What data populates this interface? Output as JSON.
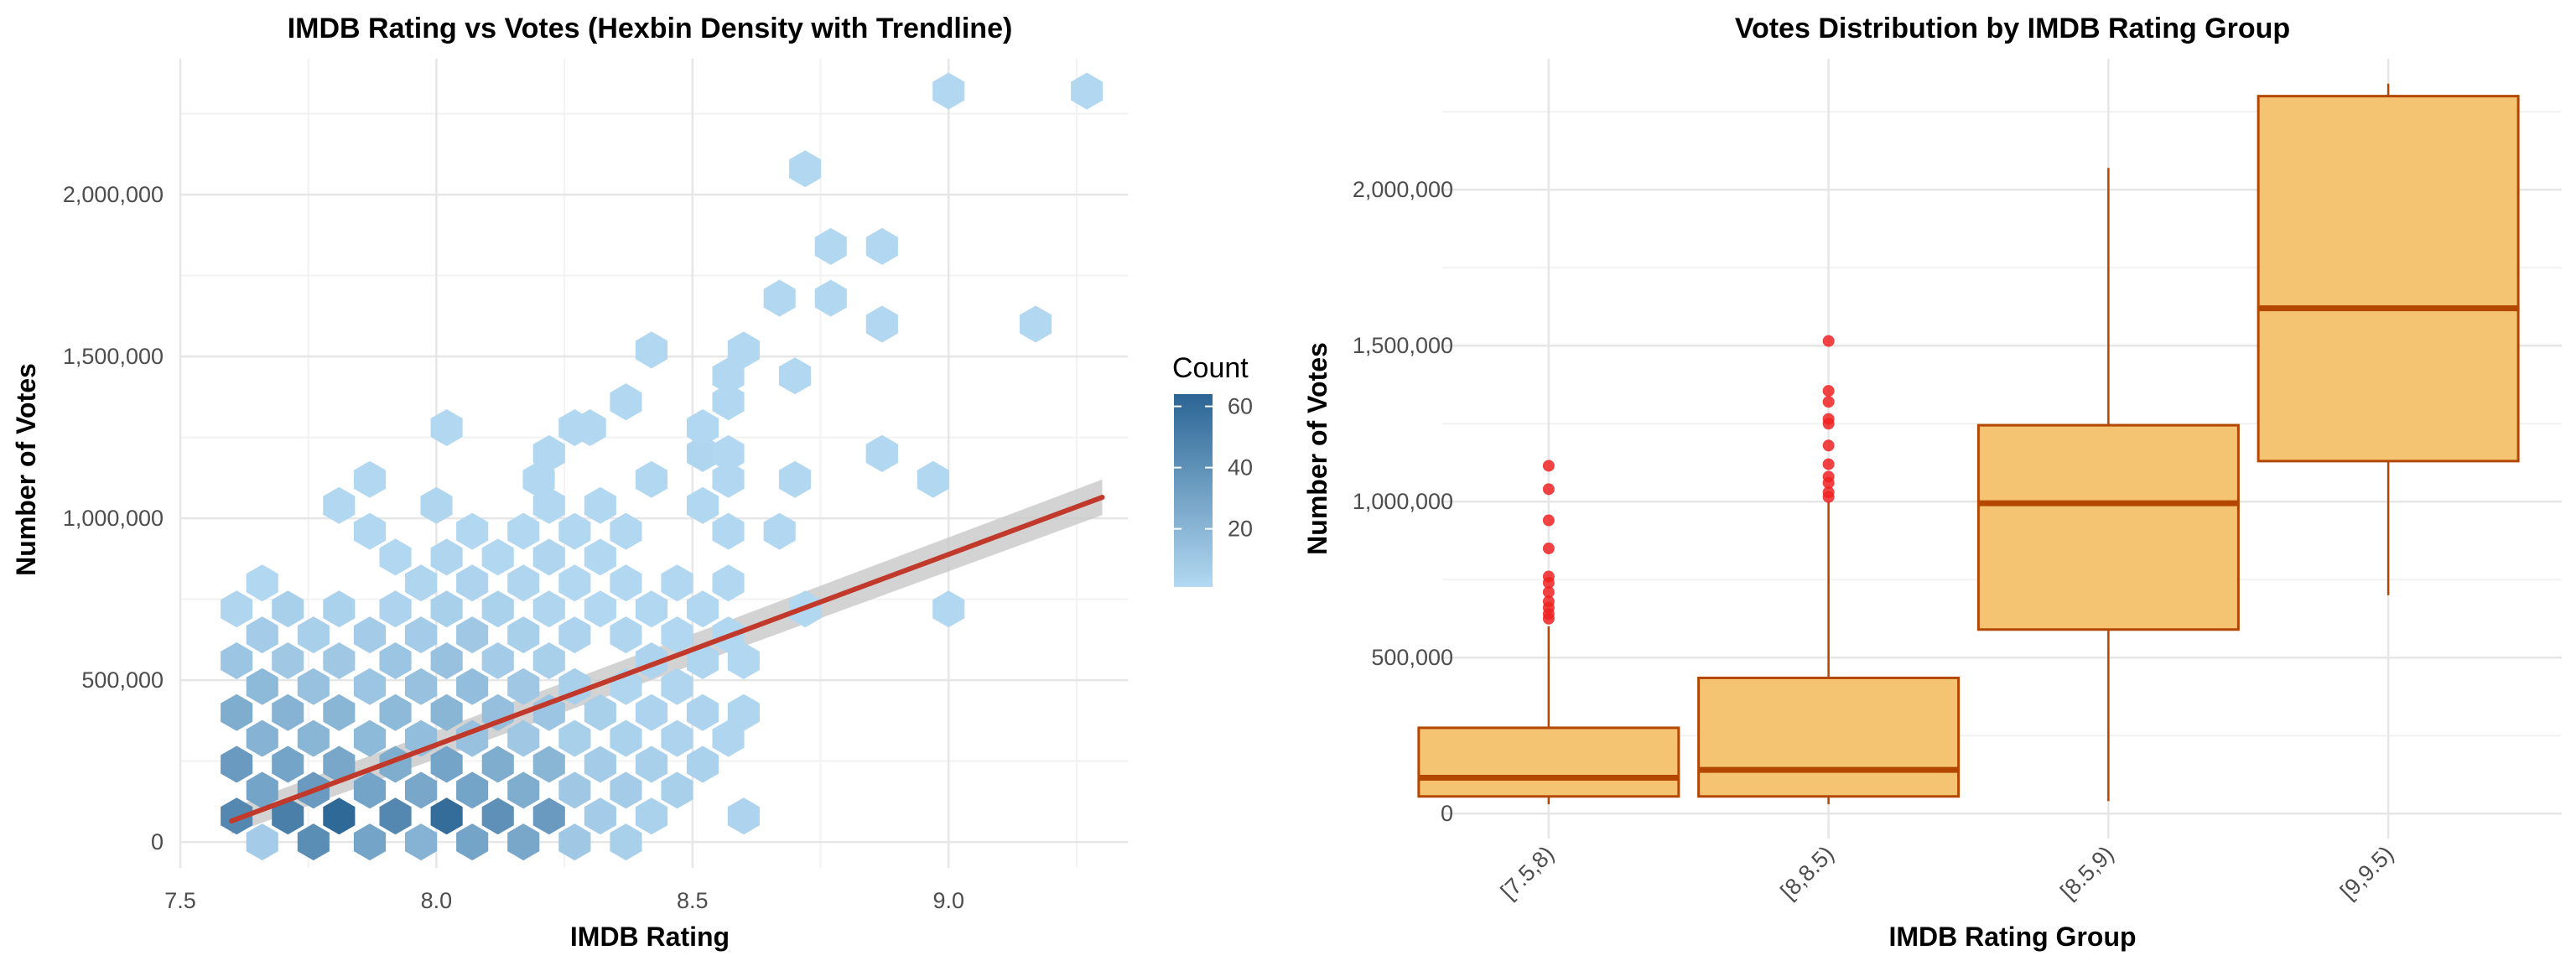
{
  "chart_data": [
    {
      "type": "hexbin",
      "title": "IMDB Rating vs Votes (Hexbin Density with Trendline)",
      "xlabel": "IMDB Rating",
      "ylabel": "Number of Votes",
      "xlim": [
        7.5,
        9.35
      ],
      "ylim": [
        -80000,
        2420000
      ],
      "x_ticks": [
        7.5,
        8.0,
        8.5,
        9.0
      ],
      "x_tick_labels": [
        "7.5",
        "8.0",
        "8.5",
        "9.0"
      ],
      "y_ticks": [
        0,
        500000,
        1000000,
        1500000,
        2000000
      ],
      "y_tick_labels": [
        "0",
        "500,000",
        "1,000,000",
        "1,500,000",
        "2,000,000"
      ],
      "grid": true,
      "legend": {
        "title": "Count",
        "position": "right",
        "ticks": [
          20,
          40,
          60
        ],
        "tick_labels": [
          "20",
          "40",
          "60"
        ],
        "range": [
          1,
          64
        ],
        "color_low": "#b3d9f2",
        "color_high": "#2b6594"
      },
      "trendline": {
        "x": [
          7.6,
          9.3
        ],
        "y": [
          65000,
          1065000
        ],
        "ci_upper": [
          105000,
          1120000
        ],
        "ci_lower": [
          25000,
          1010000
        ],
        "color": "#c0392b",
        "ci_color": "#c8c8c8"
      },
      "hexbins": [
        {
          "x": 7.61,
          "y": 80000,
          "count": 45
        },
        {
          "x": 7.71,
          "y": 80000,
          "count": 50
        },
        {
          "x": 7.81,
          "y": 80000,
          "count": 62
        },
        {
          "x": 7.92,
          "y": 80000,
          "count": 45
        },
        {
          "x": 8.02,
          "y": 80000,
          "count": 60
        },
        {
          "x": 8.12,
          "y": 80000,
          "count": 40
        },
        {
          "x": 8.22,
          "y": 80000,
          "count": 35
        },
        {
          "x": 8.32,
          "y": 80000,
          "count": 8
        },
        {
          "x": 8.42,
          "y": 80000,
          "count": 5
        },
        {
          "x": 8.6,
          "y": 80000,
          "count": 4
        },
        {
          "x": 7.66,
          "y": 0,
          "count": 8
        },
        {
          "x": 7.76,
          "y": 0,
          "count": 42
        },
        {
          "x": 7.87,
          "y": 0,
          "count": 30
        },
        {
          "x": 7.97,
          "y": 0,
          "count": 22
        },
        {
          "x": 8.07,
          "y": 0,
          "count": 30
        },
        {
          "x": 8.17,
          "y": 0,
          "count": 28
        },
        {
          "x": 8.27,
          "y": 0,
          "count": 10
        },
        {
          "x": 8.37,
          "y": 0,
          "count": 6
        },
        {
          "x": 7.61,
          "y": 240000,
          "count": 35
        },
        {
          "x": 7.71,
          "y": 240000,
          "count": 30
        },
        {
          "x": 7.81,
          "y": 240000,
          "count": 28
        },
        {
          "x": 7.92,
          "y": 240000,
          "count": 25
        },
        {
          "x": 8.02,
          "y": 240000,
          "count": 30
        },
        {
          "x": 8.12,
          "y": 240000,
          "count": 25
        },
        {
          "x": 8.22,
          "y": 240000,
          "count": 20
        },
        {
          "x": 8.32,
          "y": 240000,
          "count": 8
        },
        {
          "x": 8.42,
          "y": 240000,
          "count": 6
        },
        {
          "x": 8.52,
          "y": 240000,
          "count": 5
        },
        {
          "x": 7.66,
          "y": 160000,
          "count": 30
        },
        {
          "x": 7.76,
          "y": 160000,
          "count": 35
        },
        {
          "x": 7.87,
          "y": 160000,
          "count": 30
        },
        {
          "x": 7.97,
          "y": 160000,
          "count": 28
        },
        {
          "x": 8.07,
          "y": 160000,
          "count": 30
        },
        {
          "x": 8.17,
          "y": 160000,
          "count": 25
        },
        {
          "x": 8.27,
          "y": 160000,
          "count": 10
        },
        {
          "x": 8.37,
          "y": 160000,
          "count": 8
        },
        {
          "x": 8.47,
          "y": 160000,
          "count": 6
        },
        {
          "x": 7.61,
          "y": 400000,
          "count": 25
        },
        {
          "x": 7.71,
          "y": 400000,
          "count": 22
        },
        {
          "x": 7.81,
          "y": 400000,
          "count": 20
        },
        {
          "x": 7.92,
          "y": 400000,
          "count": 18
        },
        {
          "x": 8.02,
          "y": 400000,
          "count": 20
        },
        {
          "x": 8.12,
          "y": 400000,
          "count": 15
        },
        {
          "x": 8.22,
          "y": 400000,
          "count": 12
        },
        {
          "x": 8.32,
          "y": 400000,
          "count": 6
        },
        {
          "x": 8.42,
          "y": 400000,
          "count": 4
        },
        {
          "x": 8.52,
          "y": 400000,
          "count": 4
        },
        {
          "x": 8.6,
          "y": 400000,
          "count": 3
        },
        {
          "x": 7.66,
          "y": 320000,
          "count": 22
        },
        {
          "x": 7.76,
          "y": 320000,
          "count": 20
        },
        {
          "x": 7.87,
          "y": 320000,
          "count": 18
        },
        {
          "x": 7.97,
          "y": 320000,
          "count": 16
        },
        {
          "x": 8.07,
          "y": 320000,
          "count": 14
        },
        {
          "x": 8.17,
          "y": 320000,
          "count": 10
        },
        {
          "x": 8.27,
          "y": 320000,
          "count": 6
        },
        {
          "x": 8.37,
          "y": 320000,
          "count": 5
        },
        {
          "x": 8.47,
          "y": 320000,
          "count": 4
        },
        {
          "x": 8.57,
          "y": 320000,
          "count": 3
        },
        {
          "x": 7.61,
          "y": 560000,
          "count": 12
        },
        {
          "x": 7.71,
          "y": 560000,
          "count": 10
        },
        {
          "x": 7.81,
          "y": 560000,
          "count": 10
        },
        {
          "x": 7.92,
          "y": 560000,
          "count": 12
        },
        {
          "x": 8.02,
          "y": 560000,
          "count": 14
        },
        {
          "x": 8.12,
          "y": 560000,
          "count": 8
        },
        {
          "x": 8.22,
          "y": 560000,
          "count": 6
        },
        {
          "x": 8.42,
          "y": 560000,
          "count": 4
        },
        {
          "x": 8.52,
          "y": 560000,
          "count": 3
        },
        {
          "x": 8.6,
          "y": 560000,
          "count": 2
        },
        {
          "x": 7.66,
          "y": 480000,
          "count": 18
        },
        {
          "x": 7.76,
          "y": 480000,
          "count": 14
        },
        {
          "x": 7.87,
          "y": 480000,
          "count": 12
        },
        {
          "x": 7.97,
          "y": 480000,
          "count": 14
        },
        {
          "x": 8.07,
          "y": 480000,
          "count": 16
        },
        {
          "x": 8.17,
          "y": 480000,
          "count": 10
        },
        {
          "x": 8.27,
          "y": 480000,
          "count": 6
        },
        {
          "x": 8.37,
          "y": 480000,
          "count": 3
        },
        {
          "x": 8.47,
          "y": 480000,
          "count": 3
        },
        {
          "x": 7.61,
          "y": 720000,
          "count": 3
        },
        {
          "x": 7.71,
          "y": 720000,
          "count": 6
        },
        {
          "x": 7.81,
          "y": 720000,
          "count": 5
        },
        {
          "x": 7.92,
          "y": 720000,
          "count": 4
        },
        {
          "x": 8.02,
          "y": 720000,
          "count": 6
        },
        {
          "x": 8.12,
          "y": 720000,
          "count": 5
        },
        {
          "x": 8.22,
          "y": 720000,
          "count": 3
        },
        {
          "x": 8.32,
          "y": 720000,
          "count": 2
        },
        {
          "x": 8.42,
          "y": 720000,
          "count": 2
        },
        {
          "x": 8.52,
          "y": 720000,
          "count": 2
        },
        {
          "x": 7.66,
          "y": 640000,
          "count": 8
        },
        {
          "x": 7.76,
          "y": 640000,
          "count": 6
        },
        {
          "x": 7.87,
          "y": 640000,
          "count": 8
        },
        {
          "x": 7.97,
          "y": 640000,
          "count": 8
        },
        {
          "x": 8.07,
          "y": 640000,
          "count": 10
        },
        {
          "x": 8.17,
          "y": 640000,
          "count": 6
        },
        {
          "x": 8.27,
          "y": 640000,
          "count": 4
        },
        {
          "x": 8.37,
          "y": 640000,
          "count": 3
        },
        {
          "x": 8.47,
          "y": 640000,
          "count": 2
        },
        {
          "x": 8.57,
          "y": 640000,
          "count": 2
        },
        {
          "x": 7.66,
          "y": 800000,
          "count": 2
        },
        {
          "x": 7.97,
          "y": 800000,
          "count": 3
        },
        {
          "x": 8.07,
          "y": 800000,
          "count": 4
        },
        {
          "x": 8.17,
          "y": 800000,
          "count": 3
        },
        {
          "x": 8.27,
          "y": 800000,
          "count": 2
        },
        {
          "x": 8.37,
          "y": 800000,
          "count": 2
        },
        {
          "x": 8.47,
          "y": 800000,
          "count": 2
        },
        {
          "x": 8.57,
          "y": 800000,
          "count": 2
        },
        {
          "x": 7.92,
          "y": 880000,
          "count": 2
        },
        {
          "x": 8.02,
          "y": 880000,
          "count": 3
        },
        {
          "x": 8.12,
          "y": 880000,
          "count": 2
        },
        {
          "x": 8.22,
          "y": 880000,
          "count": 3
        },
        {
          "x": 8.32,
          "y": 880000,
          "count": 2
        },
        {
          "x": 7.87,
          "y": 960000,
          "count": 2
        },
        {
          "x": 8.07,
          "y": 960000,
          "count": 2
        },
        {
          "x": 8.17,
          "y": 960000,
          "count": 2
        },
        {
          "x": 8.27,
          "y": 960000,
          "count": 2
        },
        {
          "x": 8.37,
          "y": 960000,
          "count": 2
        },
        {
          "x": 8.57,
          "y": 960000,
          "count": 2
        },
        {
          "x": 8.67,
          "y": 960000,
          "count": 2
        },
        {
          "x": 7.81,
          "y": 1040000,
          "count": 2
        },
        {
          "x": 8.0,
          "y": 1040000,
          "count": 3
        },
        {
          "x": 8.22,
          "y": 1040000,
          "count": 2
        },
        {
          "x": 8.32,
          "y": 1040000,
          "count": 2
        },
        {
          "x": 8.52,
          "y": 1040000,
          "count": 2
        },
        {
          "x": 7.87,
          "y": 1120000,
          "count": 2
        },
        {
          "x": 8.2,
          "y": 1120000,
          "count": 2
        },
        {
          "x": 8.42,
          "y": 1120000,
          "count": 2
        },
        {
          "x": 8.57,
          "y": 1120000,
          "count": 2
        },
        {
          "x": 8.7,
          "y": 1120000,
          "count": 2
        },
        {
          "x": 8.97,
          "y": 1120000,
          "count": 2
        },
        {
          "x": 8.22,
          "y": 1200000,
          "count": 2
        },
        {
          "x": 8.52,
          "y": 1200000,
          "count": 3
        },
        {
          "x": 8.57,
          "y": 1200000,
          "count": 2
        },
        {
          "x": 8.87,
          "y": 1200000,
          "count": 2
        },
        {
          "x": 8.02,
          "y": 1280000,
          "count": 2
        },
        {
          "x": 8.27,
          "y": 1280000,
          "count": 2
        },
        {
          "x": 8.3,
          "y": 1280000,
          "count": 2
        },
        {
          "x": 8.52,
          "y": 1280000,
          "count": 2
        },
        {
          "x": 8.37,
          "y": 1360000,
          "count": 2
        },
        {
          "x": 8.57,
          "y": 1360000,
          "count": 2
        },
        {
          "x": 8.57,
          "y": 1440000,
          "count": 2
        },
        {
          "x": 8.7,
          "y": 1440000,
          "count": 2
        },
        {
          "x": 8.42,
          "y": 1520000,
          "count": 2
        },
        {
          "x": 8.6,
          "y": 1520000,
          "count": 2
        },
        {
          "x": 8.87,
          "y": 1600000,
          "count": 2
        },
        {
          "x": 9.17,
          "y": 1600000,
          "count": 2
        },
        {
          "x": 8.67,
          "y": 1680000,
          "count": 2
        },
        {
          "x": 8.77,
          "y": 1680000,
          "count": 2
        },
        {
          "x": 8.77,
          "y": 1840000,
          "count": 2
        },
        {
          "x": 8.87,
          "y": 1840000,
          "count": 2
        },
        {
          "x": 8.72,
          "y": 2080000,
          "count": 2
        },
        {
          "x": 9.0,
          "y": 2320000,
          "count": 2
        },
        {
          "x": 9.27,
          "y": 2320000,
          "count": 2
        },
        {
          "x": 8.72,
          "y": 720000,
          "count": 2
        },
        {
          "x": 9.0,
          "y": 720000,
          "count": 2
        },
        {
          "x": 8.87,
          "y": 1200000,
          "count": 2
        }
      ]
    },
    {
      "type": "boxplot",
      "title": "Votes Distribution by IMDB Rating Group",
      "xlabel": "IMDB Rating Group",
      "ylabel": "Number of Votes",
      "categories": [
        "[7.5,8)",
        "[8,8.5)",
        "[8.5,9)",
        "[9,9.5)"
      ],
      "ylim": [
        -80000,
        2420000
      ],
      "y_ticks": [
        0,
        500000,
        1000000,
        1500000,
        2000000
      ],
      "y_tick_labels": [
        "0",
        "500,000",
        "1,000,000",
        "1,500,000",
        "2,000,000"
      ],
      "grid": true,
      "box_fill": "#f5c473",
      "box_stroke": "#b34700",
      "outlier_color": "#ee2222",
      "boxes": [
        {
          "min": 30000,
          "q1": 55000,
          "median": 115000,
          "q3": 275000,
          "max": 600000,
          "outliers": [
            625000,
            640000,
            660000,
            680000,
            710000,
            740000,
            760000,
            850000,
            940000,
            1040000,
            1115000
          ]
        },
        {
          "min": 30000,
          "q1": 55000,
          "median": 140000,
          "q3": 435000,
          "max": 1000000,
          "outliers": [
            1015000,
            1030000,
            1060000,
            1080000,
            1120000,
            1180000,
            1250000,
            1265000,
            1320000,
            1355000,
            1515000
          ]
        },
        {
          "min": 40000,
          "q1": 590000,
          "median": 995000,
          "q3": 1245000,
          "max": 2070000,
          "outliers": []
        },
        {
          "min": 700000,
          "q1": 1130000,
          "median": 1620000,
          "q3": 2300000,
          "max": 2340000,
          "outliers": []
        }
      ]
    }
  ]
}
